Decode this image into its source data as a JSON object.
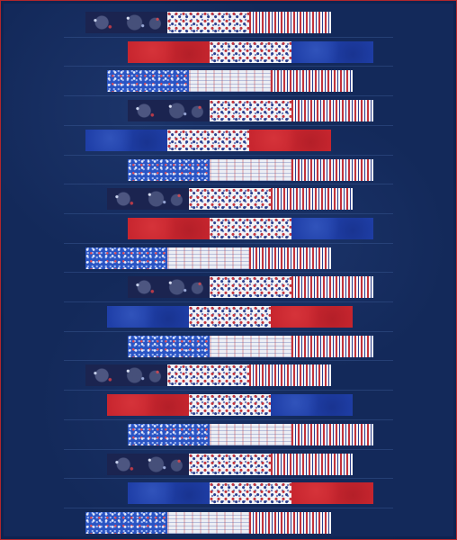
{
  "quilt": {
    "background_color": "#13295a",
    "binding_color": "#b0262c",
    "rows": [
      {
        "offset": 0,
        "fabrics": [
          "fireworks",
          "stars",
          "stripes"
        ]
      },
      {
        "offset": 1,
        "fabrics": [
          "red",
          "stars",
          "royal"
        ]
      },
      {
        "offset": 2,
        "fabrics": [
          "bluestar",
          "patriotic",
          "stripes"
        ]
      },
      {
        "offset": 3,
        "fabrics": [
          "fireworks",
          "stars",
          "stripes"
        ]
      },
      {
        "offset": 0,
        "fabrics": [
          "royal",
          "stars",
          "red"
        ]
      },
      {
        "offset": 1,
        "fabrics": [
          "bluestar",
          "patriotic",
          "stripes"
        ]
      },
      {
        "offset": 2,
        "fabrics": [
          "fireworks",
          "stars",
          "stripes"
        ]
      },
      {
        "offset": 3,
        "fabrics": [
          "red",
          "stars",
          "royal"
        ]
      },
      {
        "offset": 0,
        "fabrics": [
          "bluestar",
          "patriotic",
          "stripes"
        ]
      },
      {
        "offset": 3,
        "fabrics": [
          "fireworks",
          "stars",
          "stripes"
        ]
      },
      {
        "offset": 2,
        "fabrics": [
          "royal",
          "stars",
          "red"
        ]
      },
      {
        "offset": 1,
        "fabrics": [
          "bluestar",
          "patriotic",
          "stripes"
        ]
      },
      {
        "offset": 0,
        "fabrics": [
          "fireworks",
          "stars",
          "stripes"
        ]
      },
      {
        "offset": 2,
        "fabrics": [
          "red",
          "stars",
          "royal"
        ]
      },
      {
        "offset": 3,
        "fabrics": [
          "bluestar",
          "patriotic",
          "stripes"
        ]
      },
      {
        "offset": 1,
        "fabrics": [
          "fireworks",
          "stars",
          "stripes"
        ]
      },
      {
        "offset": 2,
        "fabrics": [
          "royal",
          "stars",
          "red"
        ]
      },
      {
        "offset": 0,
        "fabrics": [
          "bluestar",
          "patriotic",
          "stripes"
        ]
      }
    ]
  }
}
